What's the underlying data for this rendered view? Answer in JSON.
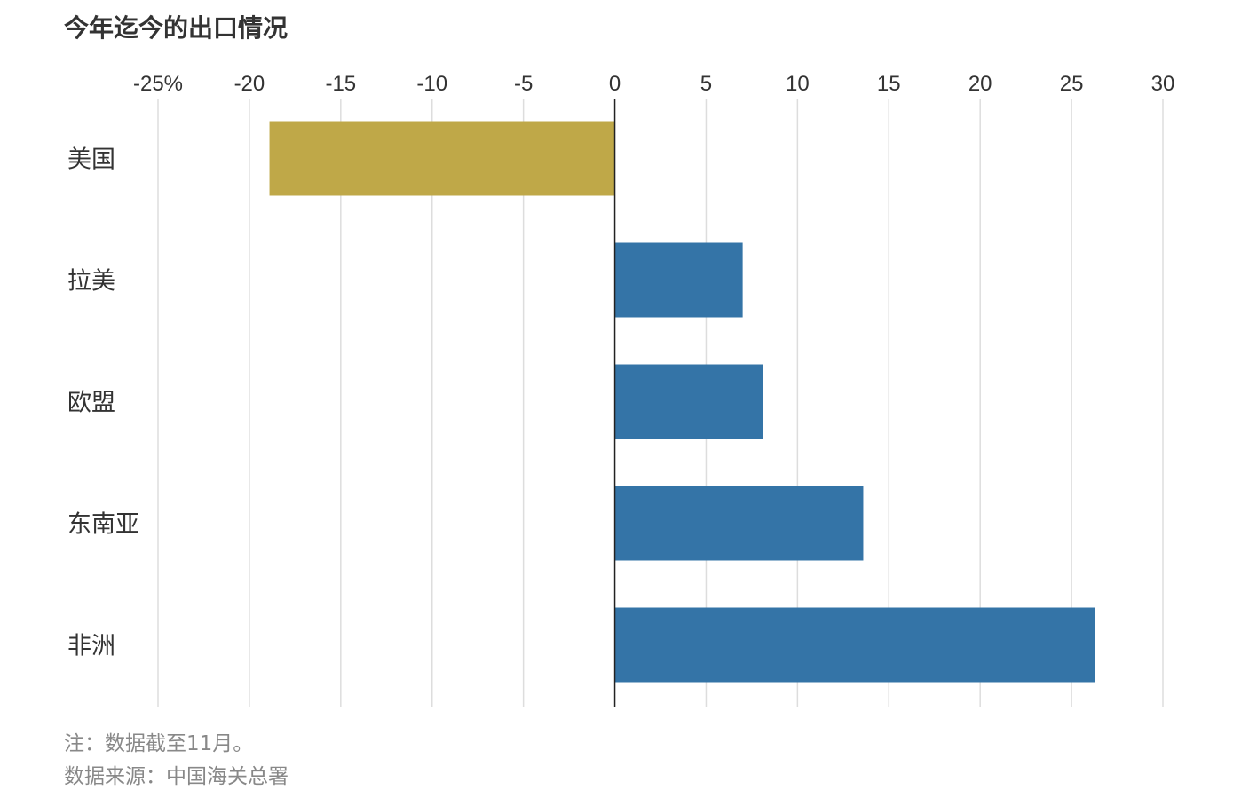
{
  "title": "今年迄今的出口情况",
  "footnote": {
    "note": "注：数据截至11月。",
    "source": "数据来源：中国海关总署"
  },
  "chart_data": {
    "type": "bar",
    "orientation": "horizontal",
    "title": "今年迄今的出口情况",
    "xlabel": "",
    "ylabel": "",
    "unit": "%",
    "categories": [
      "美国",
      "拉美",
      "欧盟",
      "东南亚",
      "非洲"
    ],
    "values": [
      -18.9,
      7.0,
      8.1,
      13.6,
      26.3
    ],
    "bar_colors": [
      "#BFA848",
      "#3474A7",
      "#3474A7",
      "#3474A7",
      "#3474A7"
    ],
    "xlim": [
      -25,
      30
    ],
    "xticks": [
      -25,
      -20,
      -15,
      -10,
      -5,
      0,
      5,
      10,
      15,
      20,
      25,
      30
    ],
    "xtick_labels": [
      "-25%",
      "-20",
      "-15",
      "-10",
      "-5",
      "0",
      "5",
      "10",
      "15",
      "20",
      "25",
      "30"
    ],
    "xaxis_position": "top",
    "grid": true,
    "legend": "none"
  }
}
